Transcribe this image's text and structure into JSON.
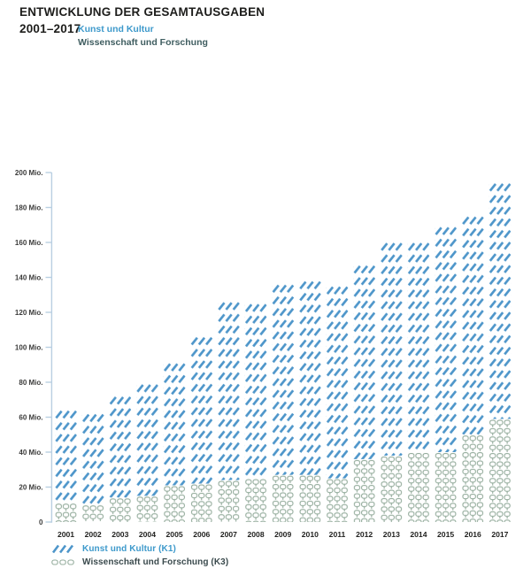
{
  "header": {
    "title": "ENTWICKLUNG DER GESAMTAUSGABEN",
    "period": "2001–2017",
    "series_k1": "Kunst und Kultur",
    "series_k3": "Wissenschaft und Forschung"
  },
  "legend": {
    "items": [
      {
        "label": "Kunst und Kultur (K1)",
        "icon": "k1-hatch-icon"
      },
      {
        "label": "Wissenschaft und Forschung (K3)",
        "icon": "k3-circles-icon"
      }
    ]
  },
  "colors": {
    "k1_blue": "#4e96ca",
    "k3_green": "#94ac9c",
    "header_k1_text": "#3d99cb",
    "header_k3_text": "#3f5d60",
    "legend_k3_text": "#3a4a4d",
    "axis": "#b9cfe2",
    "title_text": "#1d1d1b",
    "tick_text": "#3c3c3b"
  },
  "chart_data": {
    "type": "bar",
    "stacked": true,
    "title": "Entwicklung der Gesamtausgaben 2001–2017",
    "unit": "Mio.",
    "categories": [
      "2001",
      "2002",
      "2003",
      "2004",
      "2005",
      "2006",
      "2007",
      "2008",
      "2009",
      "2010",
      "2011",
      "2012",
      "2013",
      "2014",
      "2015",
      "2016",
      "2017"
    ],
    "series": [
      {
        "name": "Kunst und Kultur (K1)",
        "pattern": "diagonal-hatch",
        "color": "#4e96ca",
        "values": [
          54,
          53,
          59,
          65,
          71,
          85,
          103,
          101,
          110,
          112,
          111,
          112,
          123,
          121,
          130,
          126,
          136
        ]
      },
      {
        "name": "Wissenschaft und Forschung (K3)",
        "pattern": "chain-circles",
        "color": "#94ac9c",
        "values": [
          11,
          10,
          14,
          15,
          21,
          22,
          24,
          25,
          27,
          27,
          25,
          36,
          38,
          40,
          40,
          50,
          59
        ]
      }
    ],
    "totals": [
      65,
      63,
      73,
      80,
      92,
      107,
      127,
      126,
      137,
      139,
      136,
      148,
      161,
      161,
      170,
      176,
      195
    ],
    "yticks": [
      {
        "value": 0,
        "label": "0"
      },
      {
        "value": 20,
        "label": "20 Mio."
      },
      {
        "value": 40,
        "label": "40 Mio."
      },
      {
        "value": 60,
        "label": "60 Mio."
      },
      {
        "value": 80,
        "label": "80 Mio."
      },
      {
        "value": 100,
        "label": "100 Mio."
      },
      {
        "value": 120,
        "label": "120 Mio."
      },
      {
        "value": 140,
        "label": "140 Mio."
      },
      {
        "value": 160,
        "label": "160 Mio."
      },
      {
        "value": 180,
        "label": "180 Mio."
      },
      {
        "value": 200,
        "label": "200 Mio."
      }
    ],
    "ylim": [
      0,
      200
    ],
    "grid": false,
    "legend_position": "bottom-left"
  }
}
